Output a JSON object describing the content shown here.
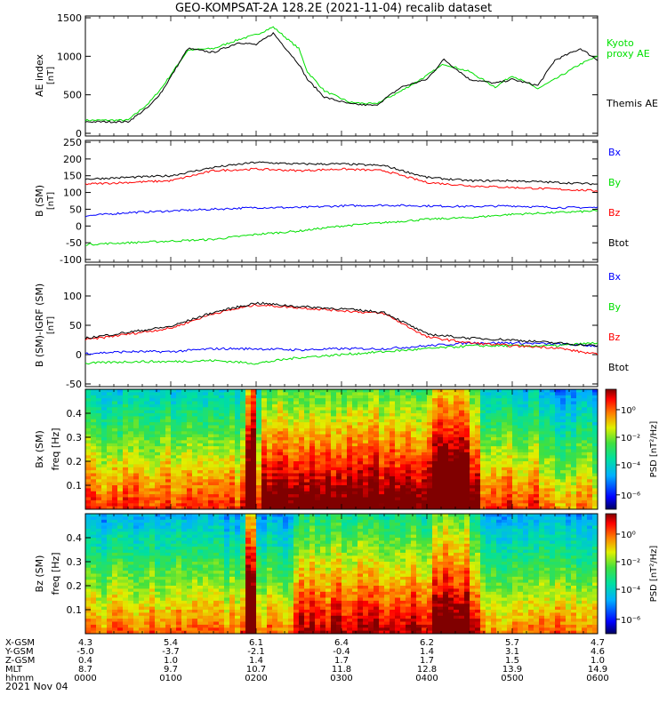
{
  "title": "GEO-KOMPSAT-2A 128.2E (2021-11-04) recalib dataset",
  "date_label": "2021 Nov 04",
  "colors": {
    "black": "#000000",
    "red": "#ff0000",
    "green": "#00e000",
    "blue": "#0000ff"
  },
  "chart_data": [
    {
      "type": "line",
      "panel": "ae",
      "ylabel": "AE index",
      "yunit": "[nT]",
      "ylim": [
        0,
        1500
      ],
      "yticks": [
        "0",
        "500",
        "1000",
        "1500"
      ],
      "x_hours": [
        0,
        0.5,
        0.75,
        0.9,
        1.2,
        1.5,
        1.8,
        2.0,
        2.2,
        2.5,
        2.6,
        2.8,
        3.1,
        3.4,
        3.7,
        4.0,
        4.2,
        4.5,
        4.8,
        5.0,
        5.3,
        5.5,
        5.8,
        6.0
      ],
      "series": [
        {
          "name": "Kyoto proxy AE",
          "color": "green",
          "values": [
            170,
            170,
            400,
            600,
            1080,
            1100,
            1220,
            1280,
            1380,
            1100,
            800,
            550,
            400,
            380,
            550,
            750,
            900,
            800,
            600,
            750,
            580,
            700,
            900,
            1000
          ]
        },
        {
          "name": "Themis AE",
          "color": "black",
          "values": [
            150,
            150,
            350,
            550,
            1100,
            1050,
            1180,
            1150,
            1300,
            900,
            700,
            470,
            380,
            360,
            600,
            700,
            960,
            700,
            650,
            700,
            620,
            950,
            1100,
            950
          ]
        }
      ]
    },
    {
      "type": "line",
      "panel": "bsm",
      "ylabel": "B (SM)",
      "yunit": "[nT]",
      "ylim": [
        -100,
        250
      ],
      "yticks": [
        "-100",
        "-50",
        "0",
        "50",
        "100",
        "150",
        "200",
        "250"
      ],
      "x_hours": [
        0,
        0.5,
        1.0,
        1.5,
        2.0,
        2.5,
        3.0,
        3.5,
        4.0,
        4.5,
        5.0,
        5.5,
        6.0
      ],
      "series": [
        {
          "name": "Bx",
          "color": "blue",
          "values": [
            30,
            40,
            45,
            50,
            55,
            55,
            60,
            62,
            60,
            58,
            60,
            55,
            55
          ]
        },
        {
          "name": "By",
          "color": "green",
          "values": [
            -55,
            -50,
            -45,
            -40,
            -25,
            -15,
            0,
            10,
            20,
            25,
            35,
            40,
            45
          ]
        },
        {
          "name": "Bz",
          "color": "red",
          "values": [
            125,
            130,
            135,
            165,
            170,
            165,
            170,
            165,
            130,
            120,
            115,
            110,
            105
          ]
        },
        {
          "name": "Btot",
          "color": "black",
          "values": [
            140,
            145,
            150,
            175,
            190,
            185,
            185,
            180,
            145,
            135,
            135,
            130,
            125
          ]
        }
      ]
    },
    {
      "type": "line",
      "panel": "bsm-igrf",
      "ylabel": "B (SM)-IGRF (SM)",
      "yunit": "[nT]",
      "ylim": [
        -50,
        150
      ],
      "yticks": [
        "-50",
        "0",
        "50",
        "100"
      ],
      "x_hours": [
        0,
        0.5,
        1.0,
        1.5,
        2.0,
        2.5,
        3.0,
        3.5,
        4.0,
        4.5,
        5.0,
        5.5,
        6.0
      ],
      "series": [
        {
          "name": "Bx",
          "color": "blue",
          "values": [
            2,
            5,
            5,
            10,
            10,
            8,
            10,
            10,
            15,
            20,
            20,
            18,
            15
          ]
        },
        {
          "name": "By",
          "color": "green",
          "values": [
            -15,
            -12,
            -12,
            -10,
            -15,
            -5,
            0,
            5,
            10,
            15,
            15,
            15,
            20
          ]
        },
        {
          "name": "Bz",
          "color": "red",
          "values": [
            25,
            35,
            45,
            70,
            85,
            80,
            75,
            70,
            30,
            20,
            15,
            12,
            0
          ]
        },
        {
          "name": "Btot",
          "color": "black",
          "values": [
            28,
            38,
            48,
            72,
            88,
            82,
            78,
            72,
            35,
            28,
            25,
            20,
            15
          ]
        }
      ]
    },
    {
      "type": "heatmap",
      "panel": "bx-spec",
      "ylabel": "Bx (SM)",
      "yunit": "freq [Hz]",
      "yticks": [
        "0.1",
        "0.2",
        "0.3",
        "0.4"
      ],
      "colorbar_label": "PSD [nT²/Hz]",
      "colorbar_ticks": [
        "10⁰",
        "10⁻²",
        "10⁻⁴",
        "10⁻⁶"
      ]
    },
    {
      "type": "heatmap",
      "panel": "bz-spec",
      "ylabel": "Bz (SM)",
      "yunit": "freq [Hz]",
      "yticks": [
        "0.1",
        "0.2",
        "0.3",
        "0.4"
      ],
      "colorbar_label": "PSD [nT²/Hz]",
      "colorbar_ticks": [
        "10⁰",
        "10⁻²",
        "10⁻⁴",
        "10⁻⁶"
      ]
    }
  ],
  "legend_ae": [
    {
      "label": "Kyoto",
      "color": "green"
    },
    {
      "label": "proxy AE",
      "color": "green"
    },
    {
      "label": "Themis AE",
      "color": "black"
    }
  ],
  "legend_b": [
    {
      "label": "Bx",
      "color": "blue"
    },
    {
      "label": "By",
      "color": "green"
    },
    {
      "label": "Bz",
      "color": "red"
    },
    {
      "label": "Btot",
      "color": "black"
    }
  ],
  "ephemeris": {
    "row_labels": [
      "X-GSM",
      "Y-GSM",
      "Z-GSM",
      "MLT",
      "hhmm"
    ],
    "columns": [
      [
        "4.3",
        "-5.0",
        "0.4",
        "8.7",
        "0000"
      ],
      [
        "5.4",
        "-3.7",
        "1.0",
        "9.7",
        "0100"
      ],
      [
        "6.1",
        "-2.1",
        "1.4",
        "10.7",
        "0200"
      ],
      [
        "6.4",
        "-0.4",
        "1.7",
        "11.8",
        "0300"
      ],
      [
        "6.2",
        "1.4",
        "1.7",
        "12.8",
        "0400"
      ],
      [
        "5.7",
        "3.1",
        "1.5",
        "13.9",
        "0500"
      ],
      [
        "4.7",
        "4.6",
        "1.0",
        "14.9",
        "0600"
      ]
    ]
  }
}
